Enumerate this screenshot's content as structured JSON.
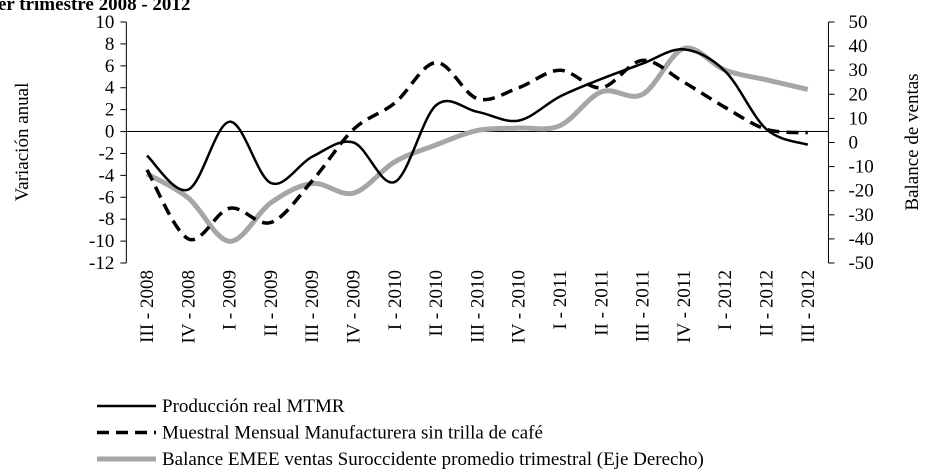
{
  "chart_data": {
    "type": "line",
    "title": "er trimestre 2008 - 2012",
    "y_label": "Variación anual",
    "y2_label": "Balance de ventas",
    "categories": [
      "III - 2008",
      "IV - 2008",
      "I - 2009",
      "II - 2009",
      "III - 2009",
      "IV - 2009",
      "I - 2010",
      "II - 2010",
      "III - 2010",
      "IV - 2010",
      "I - 2011",
      "II - 2011",
      "III - 2011",
      "IV - 2011",
      "I - 2012",
      "II - 2012",
      "III - 2012"
    ],
    "series": [
      {
        "name": "Producción real MTMR",
        "color": "#000000",
        "dash": false,
        "values": [
          -2.2,
          -5.3,
          0.9,
          -4.7,
          -2.3,
          -1.0,
          -4.6,
          2.4,
          1.8,
          1.0,
          3.2,
          4.8,
          6.2,
          7.5,
          5.5,
          0.2,
          -1.2
        ]
      },
      {
        "name": "Muestral Mensual Manufacturera sin trilla de café",
        "color": "#000000",
        "dash": true,
        "values": [
          -3.5,
          -9.8,
          -7.0,
          -8.3,
          -4.5,
          0.2,
          2.6,
          6.3,
          3.0,
          4.0,
          5.6,
          4.0,
          6.5,
          4.5,
          2.2,
          0.2,
          -0.1
        ]
      },
      {
        "name": "Balance EMEE ventas Suroccidente promedio  trimestral (Eje Derecho)",
        "color": "#a6a6a6",
        "dash": false,
        "axis": "y2",
        "values": [
          -13,
          -23,
          -41,
          -25,
          -17,
          -21,
          -8,
          -1,
          5,
          6,
          7,
          21,
          20,
          39,
          30,
          26,
          22
        ]
      }
    ],
    "ylim": [
      -12,
      10
    ],
    "yticks": [
      -12,
      -10,
      -8,
      -6,
      -4,
      -2,
      0,
      2,
      4,
      6,
      8,
      10
    ],
    "y2lim": [
      -50,
      50
    ],
    "y2ticks": [
      -50,
      -40,
      -30,
      -20,
      -10,
      0,
      10,
      20,
      30,
      40,
      50
    ],
    "legend": "bottom"
  }
}
